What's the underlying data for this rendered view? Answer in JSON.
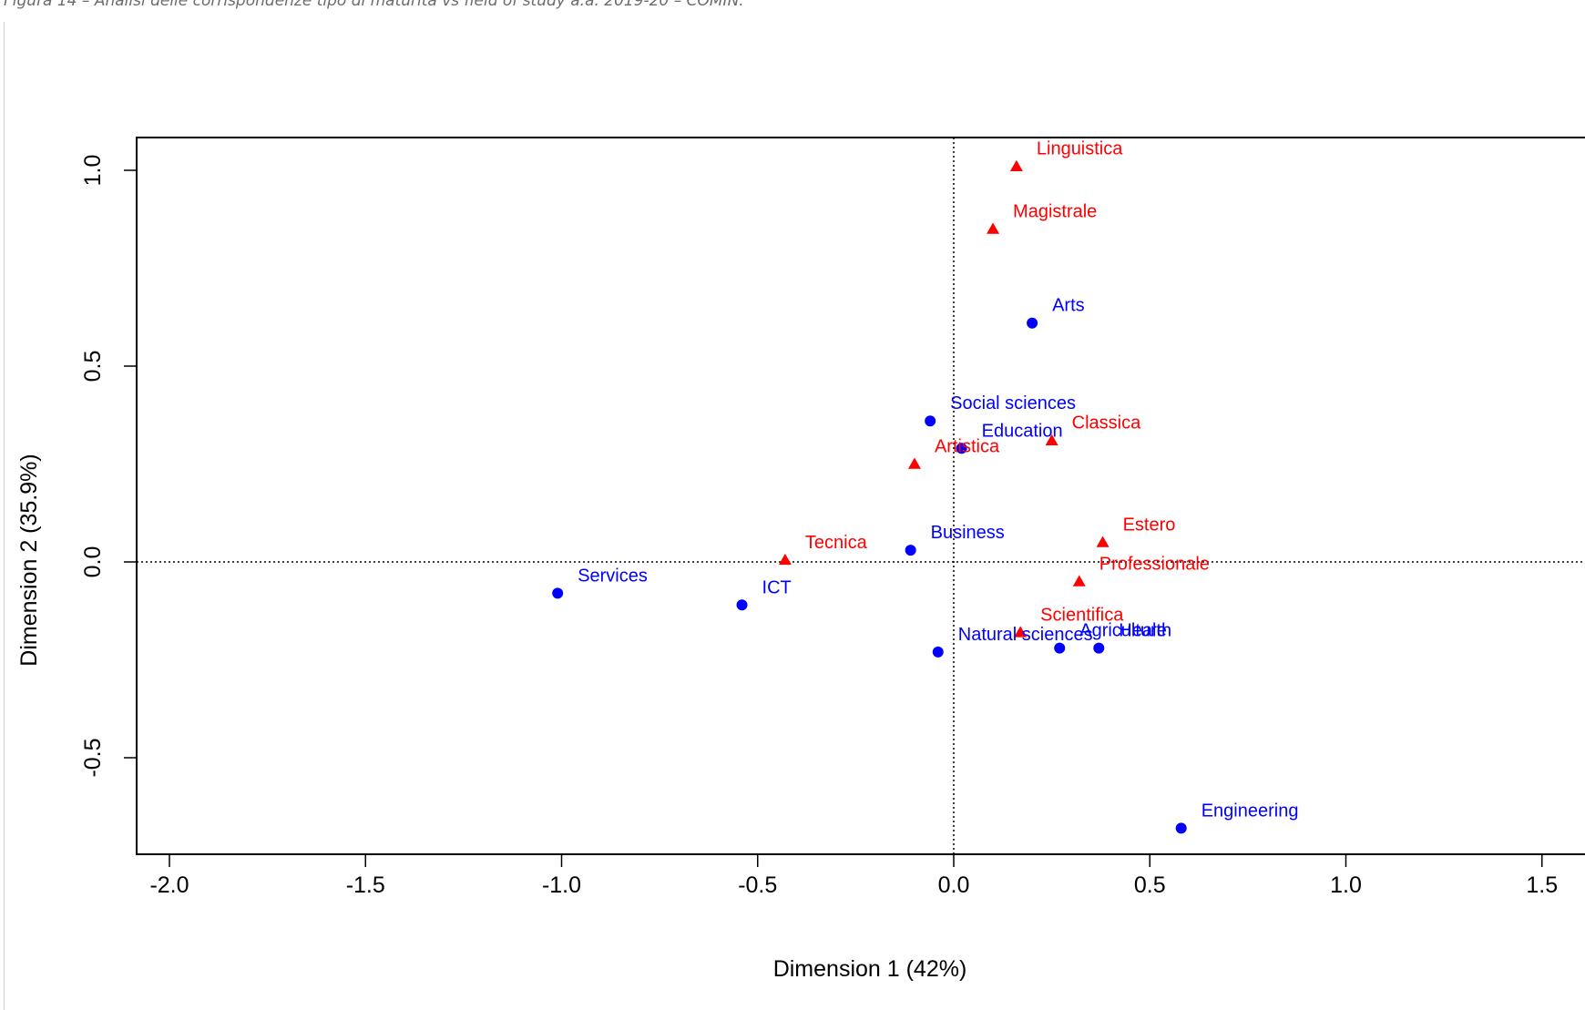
{
  "caption": "Figura 14 – Analisi delle corrispondenze tipo di maturità vs field of study a.a. 2019-20 – COMIN.",
  "colors": {
    "row_points": "#ff0000",
    "col_points": "#0000ff",
    "axis": "#000000"
  },
  "chart_data": {
    "type": "scatter",
    "title": "",
    "xlabel": "Dimension 1 (42%)",
    "ylabel": "Dimension 2 (35.9%)",
    "xlim": [
      -2.08,
      1.6
    ],
    "ylim": [
      -0.75,
      1.08
    ],
    "xticks": [
      -2.0,
      -1.5,
      -1.0,
      -0.5,
      0.0,
      0.5,
      1.0,
      1.5
    ],
    "xtick_labels": [
      "-2.0",
      "-1.5",
      "-1.0",
      "-0.5",
      "0.0",
      "0.5",
      "1.0",
      "1.5"
    ],
    "yticks": [
      -0.5,
      0.0,
      0.5,
      1.0
    ],
    "ytick_labels": [
      "-0.5",
      "0.0",
      "0.5",
      "1.0"
    ],
    "reference_lines": {
      "x": 0,
      "y": 0
    },
    "grid": false,
    "series": [
      {
        "marker": "triangle",
        "color": "#ff0000",
        "points": [
          {
            "label": "Linguistica",
            "x": 0.16,
            "y": 1.01
          },
          {
            "label": "Magistrale",
            "x": 0.1,
            "y": 0.85
          },
          {
            "label": "Classica",
            "x": 0.25,
            "y": 0.31
          },
          {
            "label": "Artistica",
            "x": -0.1,
            "y": 0.25
          },
          {
            "label": "Tecnica",
            "x": -0.43,
            "y": 0.005
          },
          {
            "label": "Estero",
            "x": 0.38,
            "y": 0.05
          },
          {
            "label": "Professionale",
            "x": 0.32,
            "y": -0.05
          },
          {
            "label": "Scientifica",
            "x": 0.17,
            "y": -0.18
          }
        ]
      },
      {
        "marker": "circle",
        "color": "#0000ff",
        "points": [
          {
            "label": "Arts",
            "x": 0.2,
            "y": 0.61
          },
          {
            "label": "Social sciences",
            "x": -0.06,
            "y": 0.36
          },
          {
            "label": "Education",
            "x": 0.02,
            "y": 0.29
          },
          {
            "label": "Business",
            "x": -0.11,
            "y": 0.03
          },
          {
            "label": "Services",
            "x": -1.01,
            "y": -0.08
          },
          {
            "label": "ICT",
            "x": -0.54,
            "y": -0.11
          },
          {
            "label": "Natural sciences",
            "x": -0.04,
            "y": -0.23
          },
          {
            "label": "Agriculture",
            "x": 0.27,
            "y": -0.22
          },
          {
            "label": "Health",
            "x": 0.37,
            "y": -0.22
          },
          {
            "label": "Engineering",
            "x": 0.58,
            "y": -0.68
          }
        ]
      }
    ]
  }
}
